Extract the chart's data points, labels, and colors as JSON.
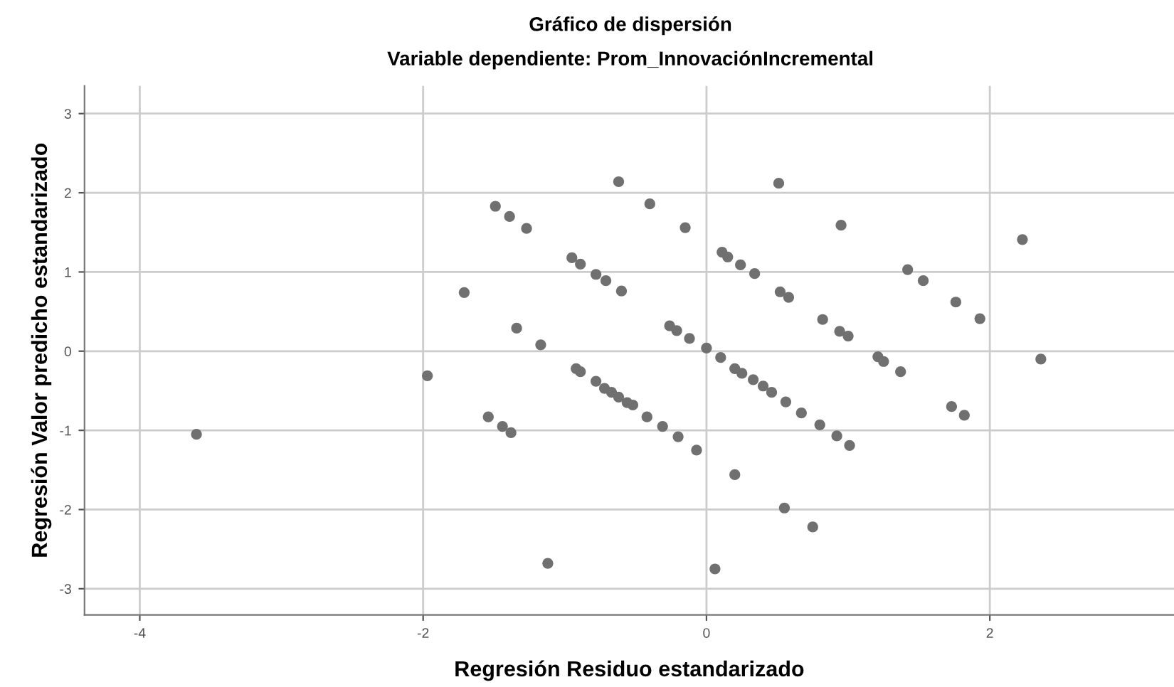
{
  "chart_data": {
    "type": "scatter",
    "title": "Gráfico de dispersión",
    "subtitle": "Variable dependiente: Prom_InnovaciónIncremental",
    "xlabel": "Regresión Residuo estandarizado",
    "ylabel": "Regresión Valor predicho estandarizado",
    "xlim": [
      -4.39,
      3.3
    ],
    "ylim": [
      -3.33,
      3.35
    ],
    "xticks": [
      -4,
      -2,
      0,
      2
    ],
    "yticks": [
      -3,
      -2,
      -1,
      0,
      1,
      2,
      3
    ],
    "grid": true,
    "marker": "circle",
    "series": [
      {
        "color": "#707070",
        "x": [
          -3.6,
          -1.97,
          -1.71,
          -1.49,
          -1.39,
          -1.27,
          -1.34,
          -1.17,
          -1.54,
          -1.44,
          -1.38,
          -1.12,
          -0.95,
          -0.89,
          -0.78,
          -0.71,
          -0.6,
          -0.62,
          -0.4,
          -0.15,
          0.51,
          0.95,
          2.23,
          0.11,
          0.15,
          0.24,
          0.34,
          0.52,
          0.58,
          0.82,
          0.94,
          1.0,
          1.42,
          1.53,
          1.76,
          1.93,
          2.36,
          1.21,
          1.25,
          1.37,
          -0.26,
          -0.21,
          -0.12,
          0.0,
          0.1,
          0.2,
          0.25,
          0.33,
          0.4,
          0.46,
          0.56,
          0.67,
          0.8,
          0.92,
          1.01,
          1.73,
          1.82,
          0.2,
          0.55,
          0.75,
          0.06,
          -0.92,
          -0.89,
          -0.78,
          -0.72,
          -0.67,
          -0.62,
          -0.56,
          -0.52,
          -0.42,
          -0.31,
          -0.2,
          -0.07
        ],
        "values": [
          -1.05,
          -0.31,
          0.74,
          1.83,
          1.7,
          1.55,
          0.29,
          0.08,
          -0.83,
          -0.95,
          -1.03,
          -2.68,
          1.18,
          1.1,
          0.97,
          0.89,
          0.76,
          2.14,
          1.86,
          1.56,
          2.12,
          1.59,
          1.41,
          1.25,
          1.19,
          1.09,
          0.98,
          0.75,
          0.68,
          0.4,
          0.25,
          0.19,
          1.03,
          0.89,
          0.62,
          0.41,
          -0.1,
          -0.07,
          -0.13,
          -0.26,
          0.32,
          0.26,
          0.16,
          0.04,
          -0.08,
          -0.22,
          -0.28,
          -0.36,
          -0.44,
          -0.52,
          -0.64,
          -0.78,
          -0.93,
          -1.07,
          -1.19,
          -0.7,
          -0.81,
          -1.56,
          -1.98,
          -2.22,
          -2.75,
          -0.22,
          -0.26,
          -0.38,
          -0.47,
          -0.52,
          -0.58,
          -0.65,
          -0.68,
          -0.83,
          -0.95,
          -1.08,
          -1.25
        ]
      }
    ]
  }
}
